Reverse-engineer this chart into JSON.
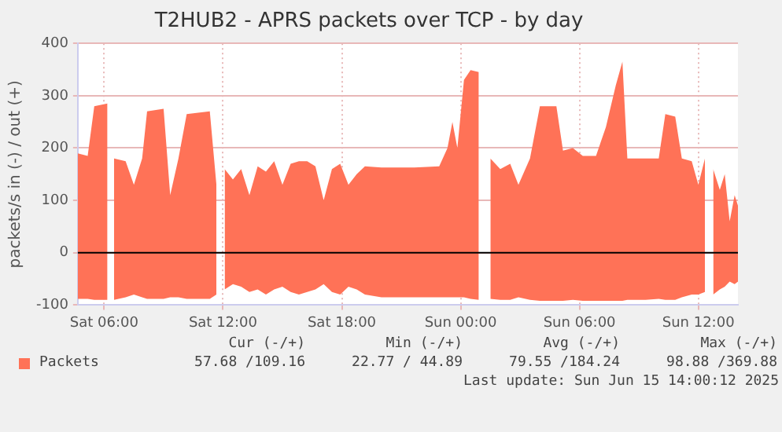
{
  "chart_data": {
    "type": "area",
    "title": "T2HUB2 - APRS packets over TCP - by day",
    "ylabel": "packets/s in (-) / out (+)",
    "x": [
      "2025-06-14T04:40",
      "2025-06-14T05:10",
      "2025-06-14T05:30",
      "2025-06-14T06:10",
      "2025-06-14T06:20",
      "2025-06-14T06:30",
      "2025-06-14T07:05",
      "2025-06-14T07:30",
      "2025-06-14T07:55",
      "2025-06-14T08:10",
      "2025-06-14T09:00",
      "2025-06-14T09:20",
      "2025-06-14T09:45",
      "2025-06-14T10:10",
      "2025-06-14T11:20",
      "2025-06-14T11:40",
      "2025-06-14T11:50",
      "2025-06-14T12:05",
      "2025-06-14T12:30",
      "2025-06-14T12:55",
      "2025-06-14T13:20",
      "2025-06-14T13:45",
      "2025-06-14T14:10",
      "2025-06-14T14:35",
      "2025-06-14T15:00",
      "2025-06-14T15:25",
      "2025-06-14T15:50",
      "2025-06-14T16:15",
      "2025-06-14T16:40",
      "2025-06-14T17:05",
      "2025-06-14T17:30",
      "2025-06-14T17:55",
      "2025-06-14T18:20",
      "2025-06-14T18:45",
      "2025-06-14T19:10",
      "2025-06-14T20:00",
      "2025-06-14T21:40",
      "2025-06-14T22:55",
      "2025-06-14T23:20",
      "2025-06-14T23:35",
      "2025-06-14T23:50",
      "2025-06-15T00:10",
      "2025-06-15T00:30",
      "2025-06-15T00:55",
      "2025-06-15T01:10",
      "2025-06-15T01:30",
      "2025-06-15T02:00",
      "2025-06-15T02:30",
      "2025-06-15T02:55",
      "2025-06-15T03:30",
      "2025-06-15T04:00",
      "2025-06-15T04:50",
      "2025-06-15T05:10",
      "2025-06-15T05:40",
      "2025-06-15T06:10",
      "2025-06-15T06:50",
      "2025-06-15T07:20",
      "2025-06-15T07:50",
      "2025-06-15T08:10",
      "2025-06-15T08:25",
      "2025-06-15T09:20",
      "2025-06-15T10:00",
      "2025-06-15T10:20",
      "2025-06-15T10:50",
      "2025-06-15T11:10",
      "2025-06-15T11:40",
      "2025-06-15T12:00",
      "2025-06-15T12:20",
      "2025-06-15T12:30",
      "2025-06-15T12:45",
      "2025-06-15T13:05",
      "2025-06-15T13:20",
      "2025-06-15T13:35",
      "2025-06-15T13:50",
      "2025-06-15T14:00"
    ],
    "series": [
      {
        "name": "Packets",
        "color": "#ff7257",
        "values": [
          190,
          185,
          280,
          285,
          null,
          180,
          175,
          130,
          180,
          270,
          275,
          110,
          180,
          265,
          270,
          130,
          null,
          160,
          140,
          160,
          110,
          165,
          155,
          175,
          130,
          170,
          175,
          175,
          165,
          100,
          160,
          170,
          130,
          150,
          165,
          163,
          163,
          165,
          200,
          250,
          200,
          330,
          349,
          345,
          null,
          180,
          160,
          170,
          130,
          180,
          280,
          280,
          195,
          200,
          185,
          185,
          240,
          320,
          365,
          180,
          180,
          180,
          265,
          260,
          180,
          175,
          130,
          180,
          null,
          160,
          120,
          150,
          60,
          110,
          90
        ]
      },
      {
        "color": "#ff7257",
        "values": [
          -88,
          -88,
          -90,
          -90,
          null,
          -90,
          -85,
          -80,
          -85,
          -88,
          -88,
          -85,
          -85,
          -88,
          -88,
          -80,
          null,
          -70,
          -60,
          -65,
          -75,
          -70,
          -80,
          -70,
          -65,
          -75,
          -80,
          -75,
          -70,
          -60,
          -75,
          -80,
          -65,
          -70,
          -80,
          -85,
          -85,
          -85,
          -85,
          -85,
          -85,
          -85,
          -88,
          -90,
          null,
          -88,
          -90,
          -90,
          -85,
          -90,
          -92,
          -92,
          -92,
          -90,
          -92,
          -92,
          -92,
          -92,
          -92,
          -90,
          -90,
          -88,
          -90,
          -90,
          -85,
          -80,
          -80,
          -75,
          null,
          -80,
          -70,
          -65,
          -55,
          -60,
          -55
        ]
      }
    ],
    "xlim": [
      "2025-06-14T04:40",
      "2025-06-15T14:00"
    ],
    "xticks": [
      {
        "value": "2025-06-14T06:00",
        "label": "Sat 06:00"
      },
      {
        "value": "2025-06-14T12:00",
        "label": "Sat 12:00"
      },
      {
        "value": "2025-06-14T18:00",
        "label": "Sat 18:00"
      },
      {
        "value": "2025-06-15T00:00",
        "label": "Sun 00:00"
      },
      {
        "value": "2025-06-15T06:00",
        "label": "Sun 06:00"
      },
      {
        "value": "2025-06-15T12:00",
        "label": "Sun 12:00"
      }
    ],
    "ylim": [
      -100,
      400
    ],
    "yticks": [
      -100,
      0,
      100,
      200,
      300,
      400
    ],
    "grid": true,
    "legend": "bottom",
    "ref_lines": [
      {
        "axis": "y",
        "value": 0,
        "color": "#000000"
      }
    ],
    "annotations": [
      "Cur (-/+)",
      "Min (-/+)",
      "Avg (-/+)",
      "Max (-/+)",
      "57.68 /109.16",
      "22.77 / 44.89",
      "79.55 /184.24",
      "98.88 /369.88",
      "Last update: Sun Jun 15 14:00:12 2025"
    ]
  }
}
